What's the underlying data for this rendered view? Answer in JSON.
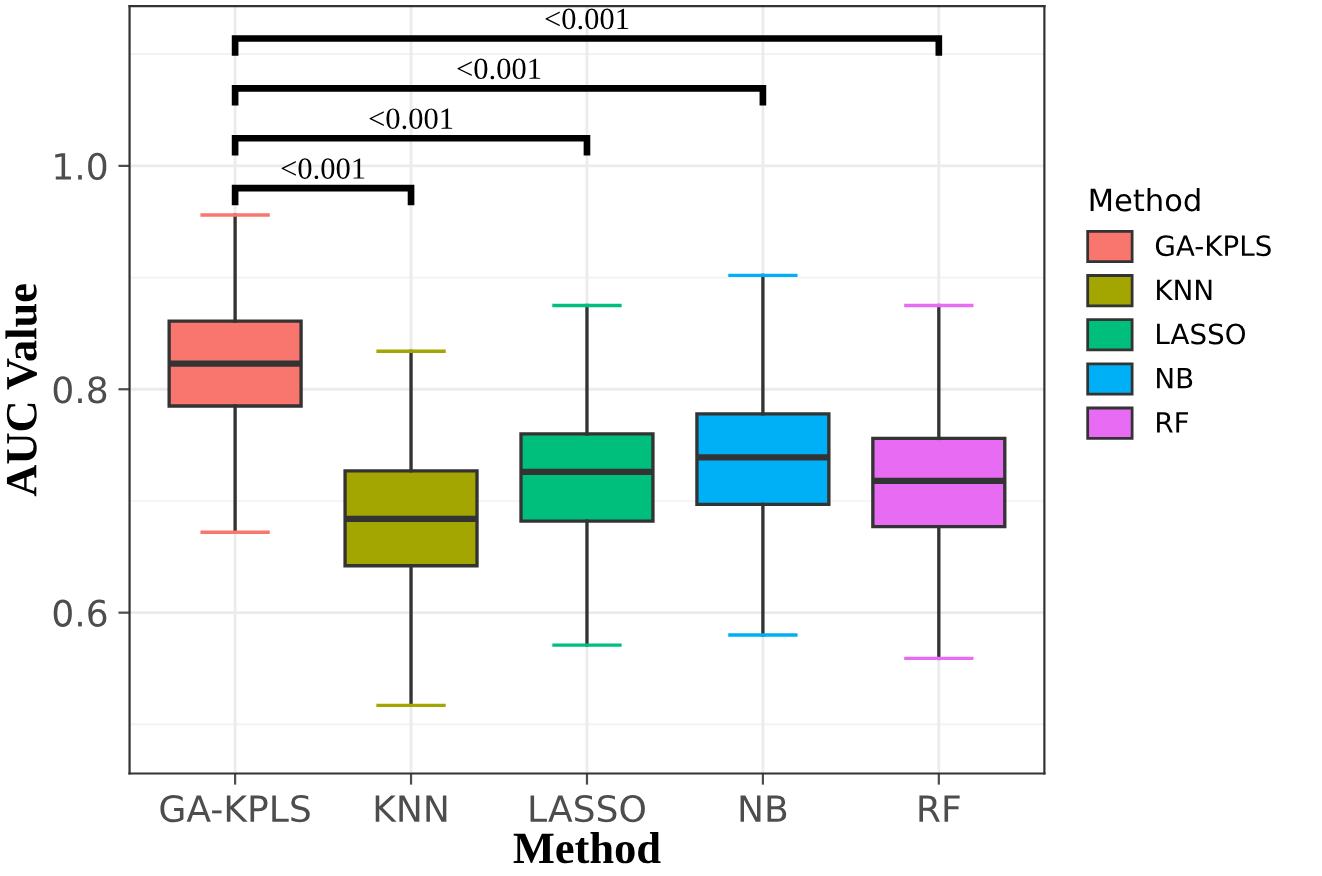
{
  "chart_data": {
    "type": "box",
    "xlabel": "Method",
    "ylabel": "AUC Value",
    "legend_title": "Method",
    "categories": [
      "GA-KPLS",
      "KNN",
      "LASSO",
      "NB",
      "RF"
    ],
    "series": [
      {
        "name": "GA-KPLS",
        "color": "#f8766d",
        "boxes": [
          {
            "low": 0.672,
            "q1": 0.785,
            "median": 0.823,
            "q3": 0.861,
            "high": 0.956
          },
          null,
          null,
          null,
          null
        ]
      },
      {
        "name": "KNN",
        "color": "#a3a500",
        "boxes": [
          null,
          {
            "low": 0.517,
            "q1": 0.642,
            "median": 0.684,
            "q3": 0.727,
            "high": 0.834
          },
          null,
          null,
          null
        ]
      },
      {
        "name": "LASSO",
        "color": "#00bf7d",
        "boxes": [
          null,
          null,
          {
            "low": 0.571,
            "q1": 0.682,
            "median": 0.726,
            "q3": 0.76,
            "high": 0.875
          },
          null,
          null
        ]
      },
      {
        "name": "NB",
        "color": "#00b0f6",
        "boxes": [
          null,
          null,
          null,
          {
            "low": 0.58,
            "q1": 0.697,
            "median": 0.739,
            "q3": 0.778,
            "high": 0.902
          },
          null
        ]
      },
      {
        "name": "RF",
        "color": "#e76bf3",
        "boxes": [
          null,
          null,
          null,
          null,
          {
            "low": 0.559,
            "q1": 0.677,
            "median": 0.718,
            "q3": 0.756,
            "high": 0.875
          }
        ]
      }
    ],
    "annotations": [
      "<0.001",
      "<0.001",
      "<0.001",
      "<0.001"
    ],
    "ylim": [
      0.456,
      1.143
    ],
    "yticks": [
      {
        "value": 0.6,
        "label": "0.6"
      },
      {
        "value": 0.8,
        "label": "0.8"
      },
      {
        "value": 1.0,
        "label": "1.0"
      }
    ],
    "grid": true,
    "legend": "right"
  }
}
